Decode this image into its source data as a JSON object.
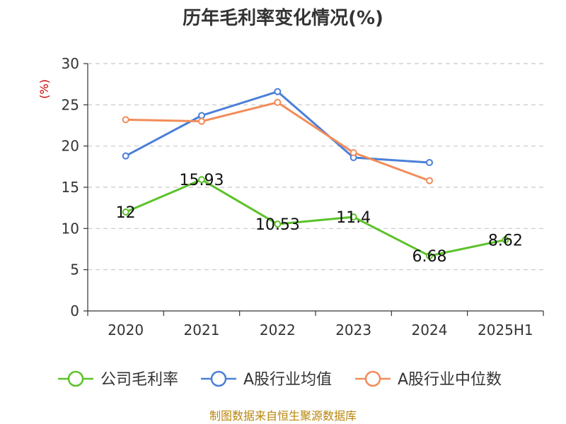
{
  "chart_data": {
    "type": "line",
    "title": "历年毛利率变化情况(%)",
    "ylabel": "(%)",
    "categories": [
      "2020",
      "2021",
      "2022",
      "2023",
      "2024",
      "2025H1"
    ],
    "ylim": [
      0,
      30
    ],
    "yticks": [
      "0",
      "5",
      "10",
      "15",
      "20",
      "25",
      "30"
    ],
    "series": [
      {
        "name": "公司毛利率",
        "color": "#5cc22a",
        "values": [
          12,
          15.93,
          10.53,
          11.4,
          6.68,
          8.62
        ],
        "labels": [
          "12",
          "15.93",
          "10.53",
          "11.4",
          "6.68",
          "8.62"
        ]
      },
      {
        "name": "A股行业均值",
        "color": "#4a7fd8",
        "values": [
          18.8,
          23.7,
          26.6,
          18.6,
          18.0,
          null
        ]
      },
      {
        "name": "A股行业中位数",
        "color": "#f28c5a",
        "values": [
          23.2,
          23.0,
          25.3,
          19.2,
          15.8,
          null
        ]
      }
    ]
  },
  "footer": {
    "source": "制图数据来自恒生聚源数据库"
  }
}
